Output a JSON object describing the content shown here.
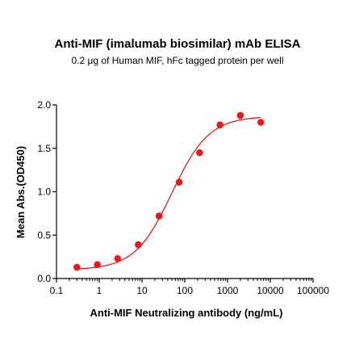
{
  "chart_data": {
    "type": "scatter",
    "title": "Anti-MIF (imalumab biosimilar) mAb ELISA",
    "subtitle": "0.2 μg of Human MIF, hFc tagged protein per well",
    "xlabel": "Anti-MIF Neutralizing antibody (ng/mL)",
    "ylabel": "Mean Abs.(OD450)",
    "x_scale": "log",
    "xlim": [
      0.1,
      100000
    ],
    "ylim": [
      0.0,
      2.0
    ],
    "x_ticks": [
      "0.1",
      "1",
      "10",
      "100",
      "1000",
      "10000",
      "100000"
    ],
    "y_ticks": [
      "0.0",
      "0.5",
      "1.0",
      "1.5",
      "2.0"
    ],
    "series": [
      {
        "points_x": [
          0.3,
          0.9,
          2.7,
          8.2,
          25,
          74,
          222,
          667,
          2000,
          6000
        ],
        "points_y": [
          0.13,
          0.16,
          0.23,
          0.39,
          0.72,
          1.11,
          1.45,
          1.77,
          1.88,
          1.8
        ],
        "color": "#e8191c",
        "fit": "4PL"
      }
    ],
    "fit_params": {
      "bottom": 0.1,
      "top": 1.87,
      "ec50": 50,
      "hill": 1.0
    },
    "grid": false,
    "legend": "none"
  }
}
